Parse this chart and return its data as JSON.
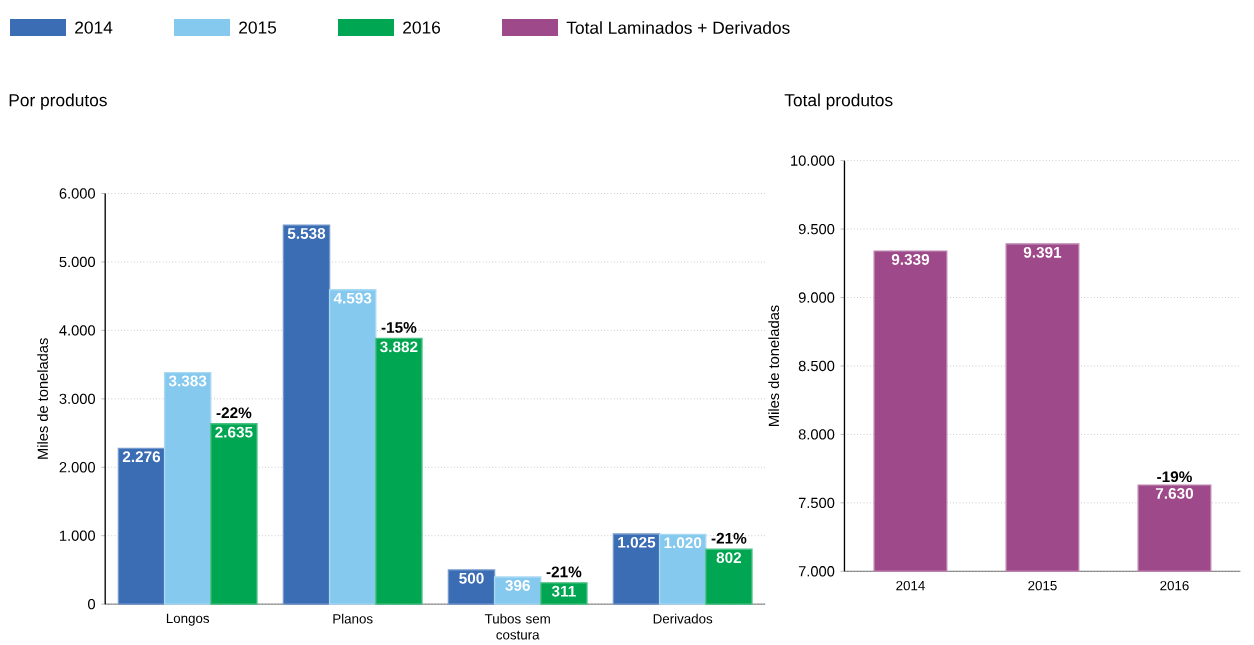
{
  "chart_data": [
    {
      "type": "bar",
      "title": "Por produtos",
      "ylabel": "Miles de toneladas",
      "categories": [
        "Longos",
        "Planos",
        "Tubos sem costura",
        "Derivados"
      ],
      "series": [
        {
          "name": "2014",
          "color": "#3b6db4",
          "values": [
            2276,
            5538,
            500,
            1025
          ],
          "value_labels": [
            "2.276",
            "5.538",
            "500",
            "1.025"
          ]
        },
        {
          "name": "2015",
          "color": "#85c9ee",
          "values": [
            3383,
            4593,
            396,
            1020
          ],
          "value_labels": [
            "3.383",
            "4.593",
            "396",
            "1.020"
          ]
        },
        {
          "name": "2016",
          "color": "#00a651",
          "values": [
            2635,
            3882,
            311,
            802
          ],
          "value_labels": [
            "2.635",
            "3.882",
            "311",
            "802"
          ]
        }
      ],
      "ylim": [
        0,
        6000
      ],
      "yticks": [
        0,
        {
          "value": 1000,
          "label": "1.000"
        },
        {
          "value": 2000,
          "label": "2.000"
        },
        {
          "value": 3000,
          "label": "3.000"
        },
        {
          "value": 4000,
          "label": "4.000"
        },
        {
          "value": 5000,
          "label": "5.000"
        },
        {
          "value": 6000,
          "label": "6.000"
        }
      ],
      "grid": "y",
      "legend": "top",
      "annotations": [
        "-22%",
        "-15%",
        "-21%",
        "-21%"
      ]
    },
    {
      "type": "bar",
      "title": "Total produtos",
      "ylabel": "Miles de toneladas",
      "categories": [
        "2014",
        "2015",
        "2016"
      ],
      "series": [
        {
          "name": "Total Laminados + Derivados",
          "color": "#9e4a8a",
          "values": [
            9339,
            9391,
            7630
          ],
          "value_labels": [
            "9.339",
            "9.391",
            "7.630"
          ]
        }
      ],
      "ylim": [
        7000,
        10000
      ],
      "yticks": [
        {
          "value": 7000,
          "label": "7.000"
        },
        {
          "value": 7500,
          "label": "7.500"
        },
        {
          "value": 8000,
          "label": "8.000"
        },
        {
          "value": 8500,
          "label": "8.500"
        },
        {
          "value": 9000,
          "label": "9.000"
        },
        {
          "value": 9500,
          "label": "9.500"
        },
        {
          "value": 10000,
          "label": "10.000"
        }
      ],
      "grid": "y",
      "legend": "top",
      "annotations": [
        {
          "text": "-19%",
          "x": "2016",
          "y": 7630
        }
      ]
    }
  ]
}
